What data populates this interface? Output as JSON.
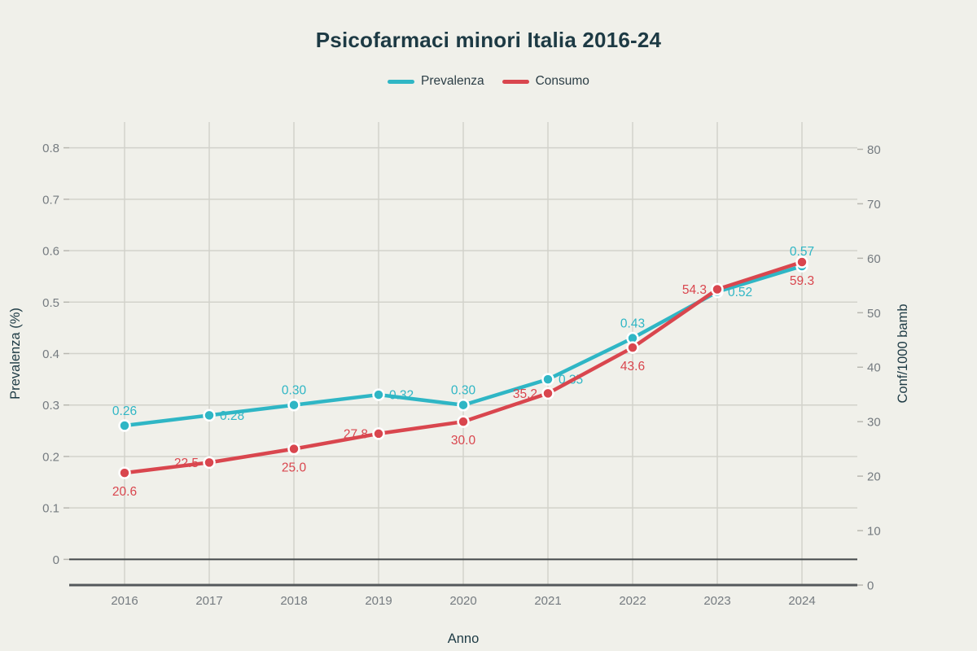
{
  "title": "Psicofarmaci minori Italia 2016-24",
  "colors": {
    "background": "#f0f0ea",
    "grid": "#d2d2cb",
    "zeroline": "#43484b",
    "axis_line": "#54585b",
    "tick_mark": "#b8b7b0",
    "tick_label": "#757b80",
    "title": "#1d3a44",
    "axis_title": "#1d3a44",
    "legend_text": "#2c3e46",
    "prevalenza": "#2fb6c5",
    "consumo": "#d9464e"
  },
  "chart_data": {
    "type": "line",
    "title": "Psicofarmaci minori Italia 2016-24",
    "x": [
      "2016",
      "2017",
      "2018",
      "2019",
      "2020",
      "2021",
      "2022",
      "2023",
      "2024"
    ],
    "xlabel": "Anno",
    "grid": true,
    "legend": {
      "position": "top-center",
      "entries": [
        "Prevalenza",
        "Consumo"
      ]
    },
    "left_axis": {
      "title": "Prevalenza (%)",
      "tick_values": [
        0,
        0.1,
        0.2,
        0.3,
        0.4,
        0.5,
        0.6,
        0.7,
        0.8
      ],
      "tick_labels": [
        "0",
        "0.1",
        "0.2",
        "0.3",
        "0.4",
        "0.5",
        "0.6",
        "0.7",
        "0.8"
      ],
      "range": [
        -0.05,
        0.85
      ]
    },
    "right_axis": {
      "title": "Conf/1000 bamb",
      "tick_values": [
        0,
        10,
        20,
        30,
        40,
        50,
        60,
        70,
        80
      ],
      "tick_labels": [
        "0",
        "10",
        "20",
        "30",
        "40",
        "50",
        "60",
        "70",
        "80"
      ],
      "range": [
        0,
        85
      ]
    },
    "series": [
      {
        "name": "Prevalenza",
        "yaxis": "left",
        "color": "#2fb6c5",
        "values": [
          0.26,
          0.28,
          0.3,
          0.32,
          0.3,
          0.35,
          0.43,
          0.52,
          0.57
        ],
        "point_labels": [
          "0.26",
          "0.28",
          "0.30",
          "0.32",
          "0.30",
          "0.35",
          "0.43",
          "0.52",
          "0.57"
        ],
        "label_positions": [
          "top",
          "right",
          "top",
          "right",
          "top",
          "right",
          "top",
          "right",
          "top"
        ]
      },
      {
        "name": "Consumo",
        "yaxis": "right",
        "color": "#d9464e",
        "values": [
          20.6,
          22.5,
          25.0,
          27.8,
          30.0,
          35.2,
          43.6,
          54.3,
          59.3
        ],
        "point_labels": [
          "20.6",
          "22.5",
          "25.0",
          "27.8",
          "30.0",
          "35.2",
          "43.6",
          "54.3",
          "59.3"
        ],
        "label_positions": [
          "bottom",
          "left",
          "bottom",
          "left",
          "bottom",
          "left",
          "bottom",
          "left",
          "bottom"
        ]
      }
    ]
  }
}
